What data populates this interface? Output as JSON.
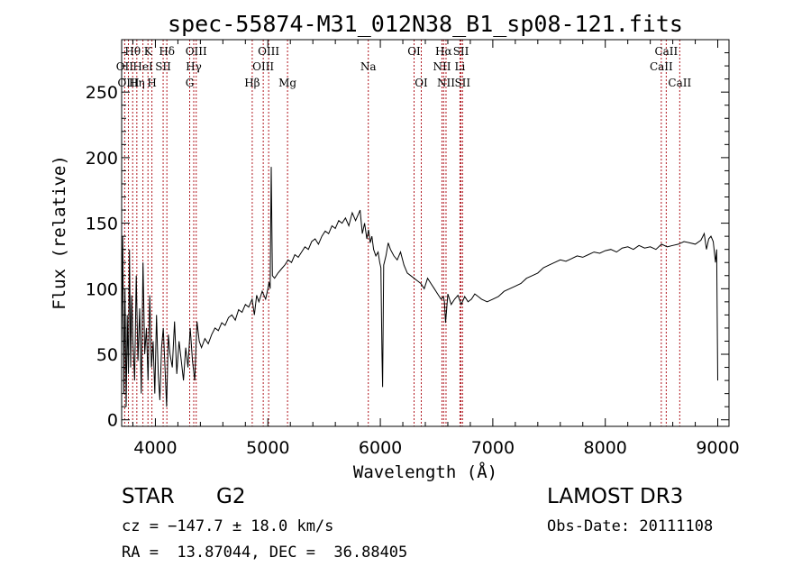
{
  "chart_data": {
    "type": "line",
    "title": "spec-55874-M31_012N38_B1_sp08-121.fits",
    "xlabel": "Wavelength (Å)",
    "ylabel": "Flux (relative)",
    "xlim": [
      3700,
      9100
    ],
    "ylim": [
      -5,
      290
    ],
    "xticks": [
      4000,
      5000,
      6000,
      7000,
      8000,
      9000
    ],
    "yticks": [
      0,
      50,
      100,
      150,
      200,
      250
    ],
    "series": [
      {
        "name": "flux",
        "x": [
          3700,
          3710,
          3720,
          3730,
          3740,
          3750,
          3760,
          3770,
          3780,
          3790,
          3800,
          3815,
          3830,
          3845,
          3860,
          3875,
          3890,
          3905,
          3920,
          3935,
          3950,
          3965,
          3980,
          3995,
          4010,
          4025,
          4040,
          4055,
          4070,
          4085,
          4100,
          4115,
          4130,
          4150,
          4170,
          4190,
          4210,
          4230,
          4250,
          4270,
          4290,
          4310,
          4330,
          4350,
          4370,
          4390,
          4410,
          4440,
          4470,
          4500,
          4530,
          4560,
          4590,
          4620,
          4650,
          4680,
          4710,
          4740,
          4770,
          4800,
          4830,
          4860,
          4880,
          4900,
          4920,
          4950,
          4980,
          5000,
          5010,
          5020,
          5030,
          5040,
          5060,
          5090,
          5120,
          5150,
          5180,
          5210,
          5240,
          5270,
          5300,
          5330,
          5360,
          5390,
          5420,
          5450,
          5480,
          5510,
          5540,
          5570,
          5600,
          5630,
          5660,
          5690,
          5720,
          5750,
          5780,
          5800,
          5820,
          5840,
          5860,
          5880,
          5895,
          5910,
          5925,
          5940,
          5960,
          5980,
          5995,
          6005,
          6015,
          6020,
          6030,
          6050,
          6070,
          6090,
          6120,
          6150,
          6180,
          6210,
          6240,
          6270,
          6300,
          6330,
          6360,
          6390,
          6420,
          6450,
          6480,
          6510,
          6540,
          6560,
          6570,
          6580,
          6600,
          6630,
          6660,
          6690,
          6720,
          6750,
          6780,
          6810,
          6840,
          6870,
          6900,
          6950,
          7000,
          7050,
          7100,
          7150,
          7200,
          7250,
          7300,
          7350,
          7400,
          7450,
          7500,
          7550,
          7600,
          7650,
          7700,
          7750,
          7800,
          7850,
          7900,
          7950,
          8000,
          8050,
          8100,
          8150,
          8200,
          8250,
          8300,
          8350,
          8400,
          8450,
          8500,
          8550,
          8600,
          8650,
          8700,
          8750,
          8800,
          8850,
          8880,
          8900,
          8920,
          8940,
          8960,
          8980,
          8990,
          9000
        ],
        "y": [
          55,
          140,
          20,
          100,
          10,
          80,
          35,
          130,
          40,
          95,
          60,
          30,
          110,
          45,
          85,
          20,
          120,
          50,
          70,
          30,
          95,
          40,
          60,
          20,
          80,
          35,
          15,
          55,
          70,
          40,
          10,
          65,
          50,
          40,
          75,
          35,
          60,
          45,
          30,
          55,
          40,
          70,
          45,
          30,
          75,
          60,
          55,
          62,
          58,
          65,
          70,
          68,
          74,
          72,
          78,
          80,
          76,
          84,
          82,
          88,
          86,
          92,
          80,
          95,
          90,
          98,
          92,
          100,
          105,
          100,
          193,
          110,
          108,
          112,
          115,
          118,
          122,
          120,
          126,
          124,
          128,
          132,
          130,
          136,
          138,
          134,
          140,
          144,
          142,
          148,
          146,
          152,
          150,
          154,
          148,
          158,
          152,
          156,
          160,
          142,
          150,
          138,
          145,
          135,
          140,
          130,
          125,
          128,
          120,
          116,
          50,
          25,
          118,
          125,
          135,
          130,
          125,
          122,
          128,
          118,
          112,
          110,
          108,
          106,
          104,
          100,
          108,
          104,
          100,
          96,
          92,
          94,
          90,
          74,
          96,
          88,
          92,
          95,
          88,
          94,
          90,
          92,
          96,
          94,
          92,
          90,
          92,
          94,
          98,
          100,
          102,
          104,
          108,
          110,
          112,
          116,
          118,
          120,
          122,
          121,
          123,
          125,
          124,
          126,
          128,
          127,
          129,
          130,
          128,
          131,
          132,
          130,
          133,
          131,
          132,
          130,
          134,
          132,
          133,
          134,
          136,
          135,
          134,
          137,
          142,
          130,
          138,
          140,
          136,
          120,
          130,
          30
        ]
      }
    ],
    "line_markers": {
      "color": "#b0171f",
      "lines": [
        {
          "label": "Hθ",
          "x": 3798,
          "row": 1
        },
        {
          "label": "OII",
          "x": 3727,
          "row": 2
        },
        {
          "label": "OIII",
          "x": 3760,
          "row": 3
        },
        {
          "label": "K",
          "x": 3934,
          "row": 1
        },
        {
          "label": "HeI",
          "x": 3889,
          "row": 2
        },
        {
          "label": "Hη",
          "x": 3835,
          "row": 3
        },
        {
          "label": "SII",
          "x": 4069,
          "row": 2
        },
        {
          "label": "H",
          "x": 3969,
          "row": 3
        },
        {
          "label": "Hδ",
          "x": 4102,
          "row": 1
        },
        {
          "label": "OIII",
          "x": 4363,
          "row": 1
        },
        {
          "label": "Hγ",
          "x": 4341,
          "row": 2
        },
        {
          "label": "G",
          "x": 4305,
          "row": 3
        },
        {
          "label": "OIII",
          "x": 5007,
          "row": 1
        },
        {
          "label": "OIII",
          "x": 4959,
          "row": 2
        },
        {
          "label": "Hβ",
          "x": 4861,
          "row": 3
        },
        {
          "label": "Mg",
          "x": 5175,
          "row": 3
        },
        {
          "label": "Na",
          "x": 5893,
          "row": 2
        },
        {
          "label": "OI",
          "x": 6300,
          "row": 1
        },
        {
          "label": "OI",
          "x": 6364,
          "row": 3
        },
        {
          "label": "Hα",
          "x": 6563,
          "row": 1
        },
        {
          "label": "SII",
          "x": 6717,
          "row": 1
        },
        {
          "label": "NII",
          "x": 6548,
          "row": 2
        },
        {
          "label": "Li",
          "x": 6708,
          "row": 2
        },
        {
          "label": "NII",
          "x": 6584,
          "row": 3
        },
        {
          "label": "SII",
          "x": 6731,
          "row": 3
        },
        {
          "label": "CaII",
          "x": 8542,
          "row": 1
        },
        {
          "label": "CaII",
          "x": 8498,
          "row": 2
        },
        {
          "label": "CaII",
          "x": 8662,
          "row": 3
        }
      ]
    }
  },
  "info": {
    "class": "STAR",
    "subclass": "G2",
    "survey": "LAMOST DR3",
    "cz": "cz = −147.7 ± 18.0 km/s",
    "obs_date": "Obs-Date: 20111108",
    "radec": "RA =  13.87044, DEC =  36.88405"
  }
}
